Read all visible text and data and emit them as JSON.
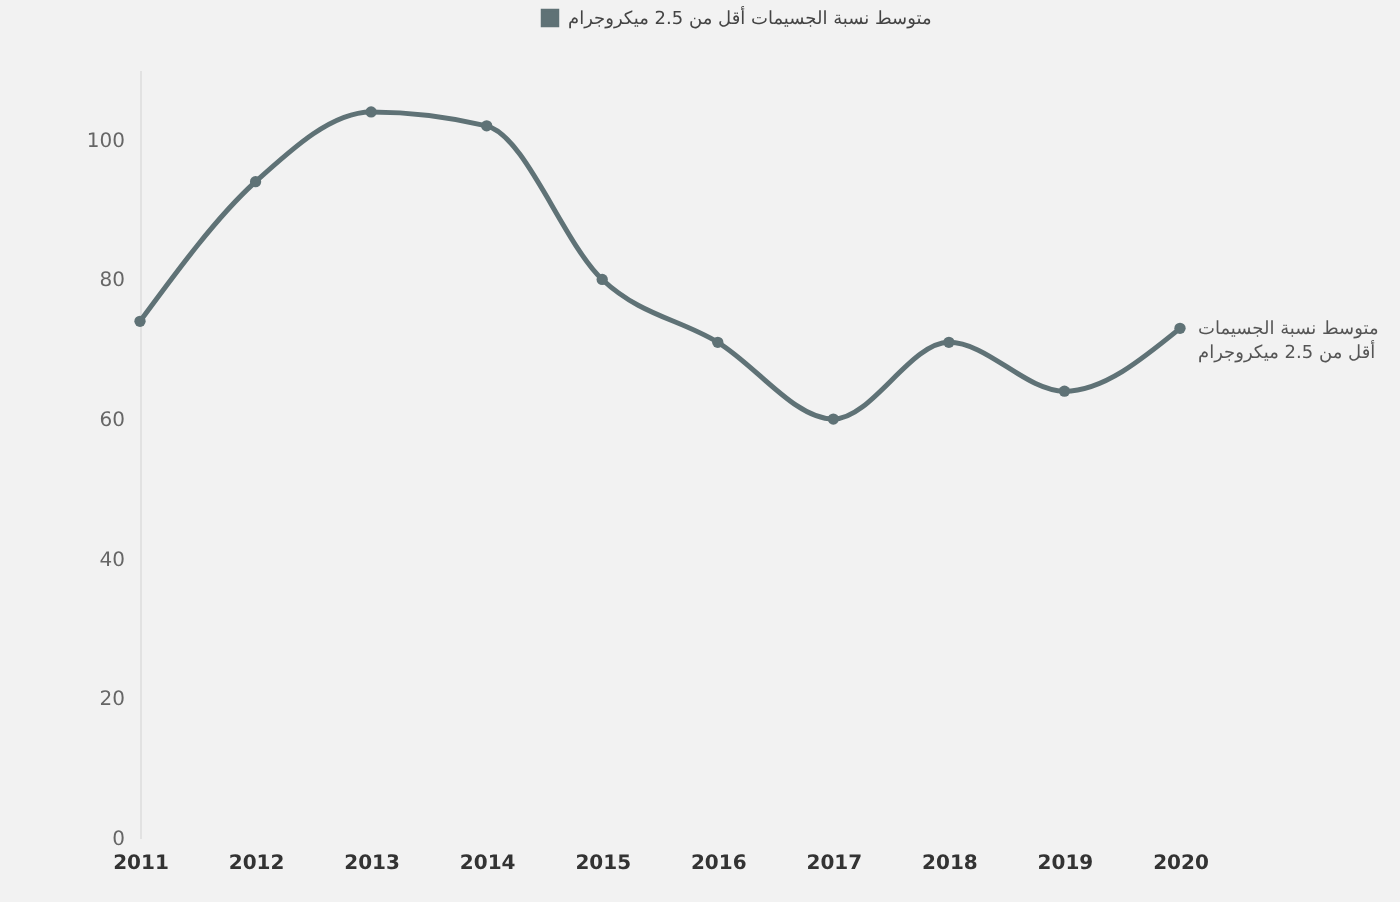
{
  "chart_data": {
    "type": "line",
    "categories": [
      "2011",
      "2012",
      "2013",
      "2014",
      "2015",
      "2016",
      "2017",
      "2018",
      "2019",
      "2020"
    ],
    "series": [
      {
        "name": "متوسط نسبة الجسيمات أقل من 2.5 ميكروجرام",
        "color": "#5f7276",
        "values": [
          74,
          94,
          104,
          102,
          80,
          71,
          60,
          71,
          64,
          73
        ]
      }
    ],
    "ylim": [
      0,
      110
    ],
    "yticks": [
      0,
      20,
      40,
      60,
      80,
      100
    ],
    "legend": "top",
    "marker": "circle"
  }
}
